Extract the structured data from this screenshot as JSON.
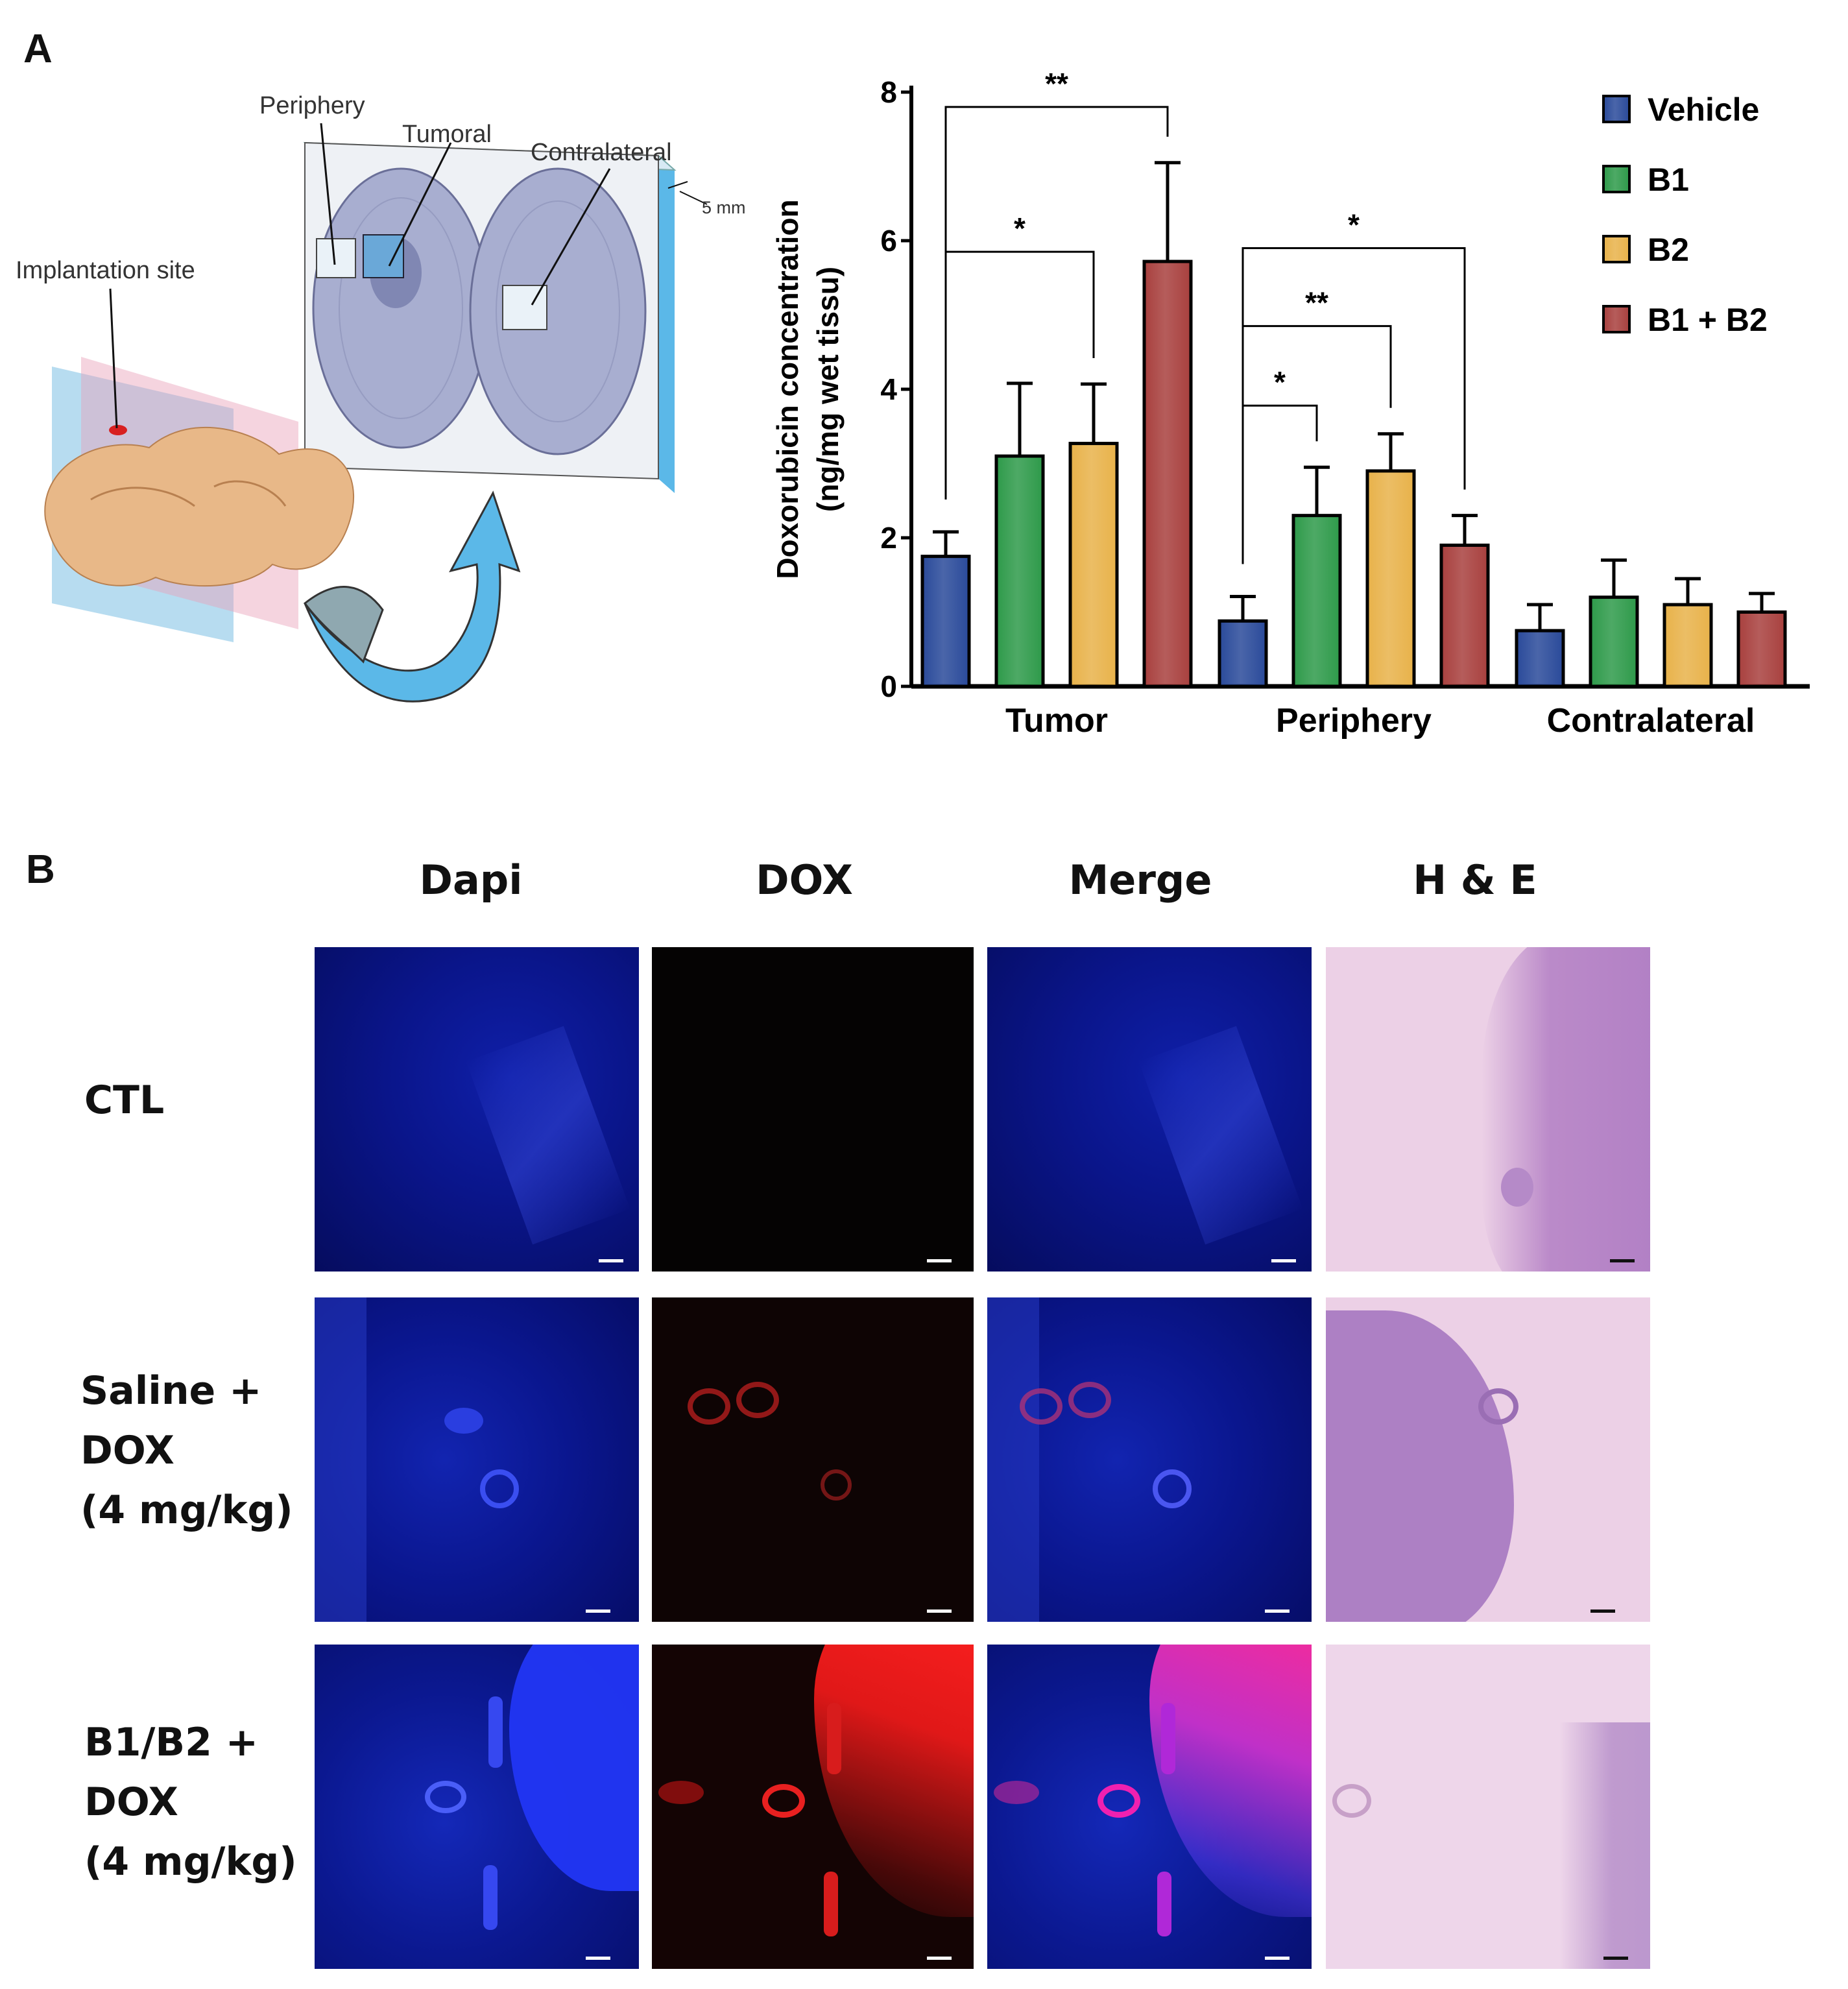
{
  "figure": {
    "panel_a_letter": "A",
    "panel_b_letter": "B"
  },
  "schematic": {
    "labels": {
      "periphery": "Periphery",
      "tumoral": "Tumoral",
      "contralateral": "Contralateral",
      "thickness": "5 mm",
      "implantation": "Implantation site"
    },
    "colors": {
      "arrow": "#5bb8e8",
      "brain": "#e8b888",
      "slab": "#cfe0ec",
      "tissue": "#a8aed0"
    }
  },
  "chart_data": {
    "type": "bar",
    "ylabel_line1": "Doxorubicin concentration",
    "ylabel_line2": "(ng/mg wet tissu)",
    "ylim": [
      0,
      8
    ],
    "yticks": [
      "0",
      "2",
      "4",
      "6",
      "8"
    ],
    "categories": [
      "Tumor",
      "Periphery",
      "Contralateral"
    ],
    "series": [
      {
        "name": "Vehicle",
        "color": "#2a4a9a",
        "values": [
          1.75,
          0.88,
          0.75
        ],
        "errors": [
          0.33,
          0.33,
          0.35
        ]
      },
      {
        "name": "B1",
        "color": "#2e9a4a",
        "values": [
          3.1,
          2.3,
          1.2
        ],
        "errors": [
          0.98,
          0.65,
          0.5
        ]
      },
      {
        "name": "B2",
        "color": "#e8b24a",
        "values": [
          3.27,
          2.9,
          1.1
        ],
        "errors": [
          0.8,
          0.5,
          0.35
        ]
      },
      {
        "name": "B1 + B2",
        "color": "#a8403e",
        "values": [
          5.72,
          1.9,
          1.0
        ],
        "errors": [
          1.33,
          0.4,
          0.25
        ]
      }
    ],
    "significance": [
      {
        "category": 0,
        "from": 0,
        "to": 3,
        "y": 7.8,
        "label": "**"
      },
      {
        "category": 0,
        "from": 0,
        "to": 2,
        "y": 5.85,
        "label": "*"
      },
      {
        "category": 1,
        "from": 0,
        "to": 3,
        "y": 5.9,
        "label": "*"
      },
      {
        "category": 1,
        "from": 0,
        "to": 2,
        "y": 4.85,
        "label": "**"
      },
      {
        "category": 1,
        "from": 0,
        "to": 1,
        "y": 3.78,
        "label": "*"
      }
    ],
    "legend_position": "top-right"
  },
  "micrographs": {
    "columns": [
      "Dapi",
      "DOX",
      "Merge",
      "H & E"
    ],
    "rows": [
      {
        "lines": [
          "CTL"
        ]
      },
      {
        "lines": [
          "Saline +",
          "DOX",
          "(4 mg/kg)"
        ]
      },
      {
        "lines": [
          "B1/B2 +",
          "DOX",
          "(4 mg/kg)"
        ]
      }
    ]
  }
}
